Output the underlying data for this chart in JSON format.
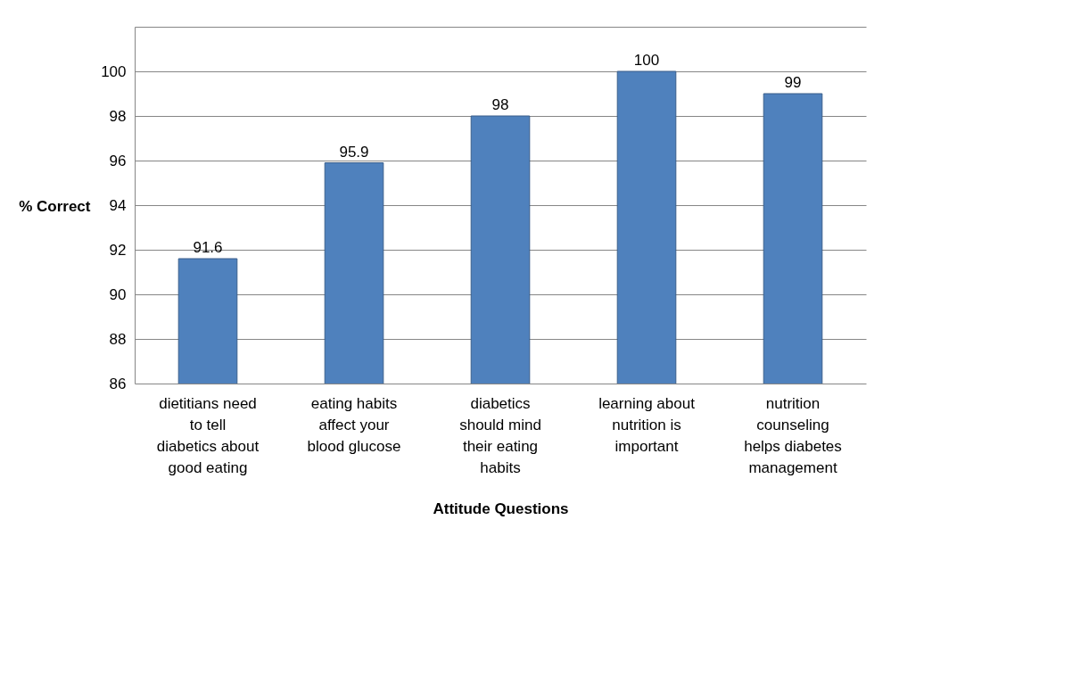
{
  "chart_data": {
    "type": "bar",
    "xlabel": "Attitude Questions",
    "ylabel": "% Correct",
    "categories": [
      "dietitians need to tell diabetics about good eating",
      "eating habits affect your blood glucose",
      "diabetics should mind their eating habits",
      "learning about nutrition is important",
      "nutrition counseling helps diabetes management"
    ],
    "values": [
      91.6,
      95.9,
      98,
      100,
      99
    ],
    "color": "#4f81bd",
    "ylim": [
      86,
      102
    ],
    "yticks": [
      86,
      88,
      90,
      92,
      94,
      96,
      98,
      100,
      {
        "value": 102,
        "label": null
      }
    ],
    "grid": true,
    "data_labels": true
  }
}
